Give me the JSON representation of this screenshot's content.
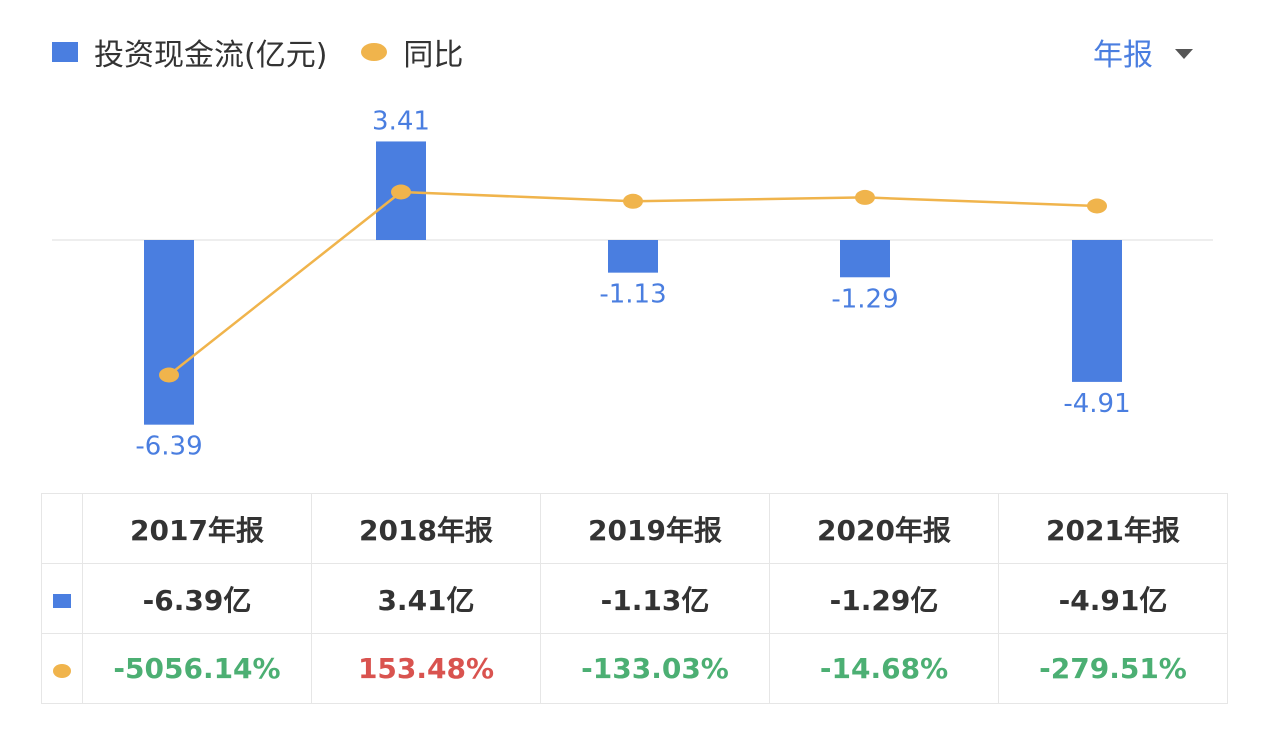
{
  "legend": {
    "bar_label": "投资现金流(亿元)",
    "dot_label": "同比"
  },
  "period_selector": {
    "label": "年报"
  },
  "colors": {
    "bar": "#4a7ee0",
    "line": "#f0b44c",
    "bar_label": "#4a7ee0",
    "positive": "#d9534f",
    "negative": "#4caf73"
  },
  "chart_data": {
    "type": "bar",
    "categories": [
      "2017年报",
      "2018年报",
      "2019年报",
      "2020年报",
      "2021年报"
    ],
    "series": [
      {
        "name": "投资现金流(亿元)",
        "type": "bar",
        "values": [
          -6.39,
          3.41,
          -1.13,
          -1.29,
          -4.91
        ],
        "labels": [
          "-6.39",
          "3.41",
          "-1.13",
          "-1.29",
          "-4.91"
        ]
      },
      {
        "name": "同比",
        "type": "line",
        "values": [
          -5056.14,
          153.48,
          -133.03,
          -14.68,
          -279.51
        ]
      }
    ]
  },
  "table": {
    "headers": [
      "2017年报",
      "2018年报",
      "2019年报",
      "2020年报",
      "2021年报"
    ],
    "bar_row": [
      "-6.39亿",
      "3.41亿",
      "-1.13亿",
      "-1.29亿",
      "-4.91亿"
    ],
    "yoy_row": [
      "-5056.14%",
      "153.48%",
      "-133.03%",
      "-14.68%",
      "-279.51%"
    ]
  }
}
